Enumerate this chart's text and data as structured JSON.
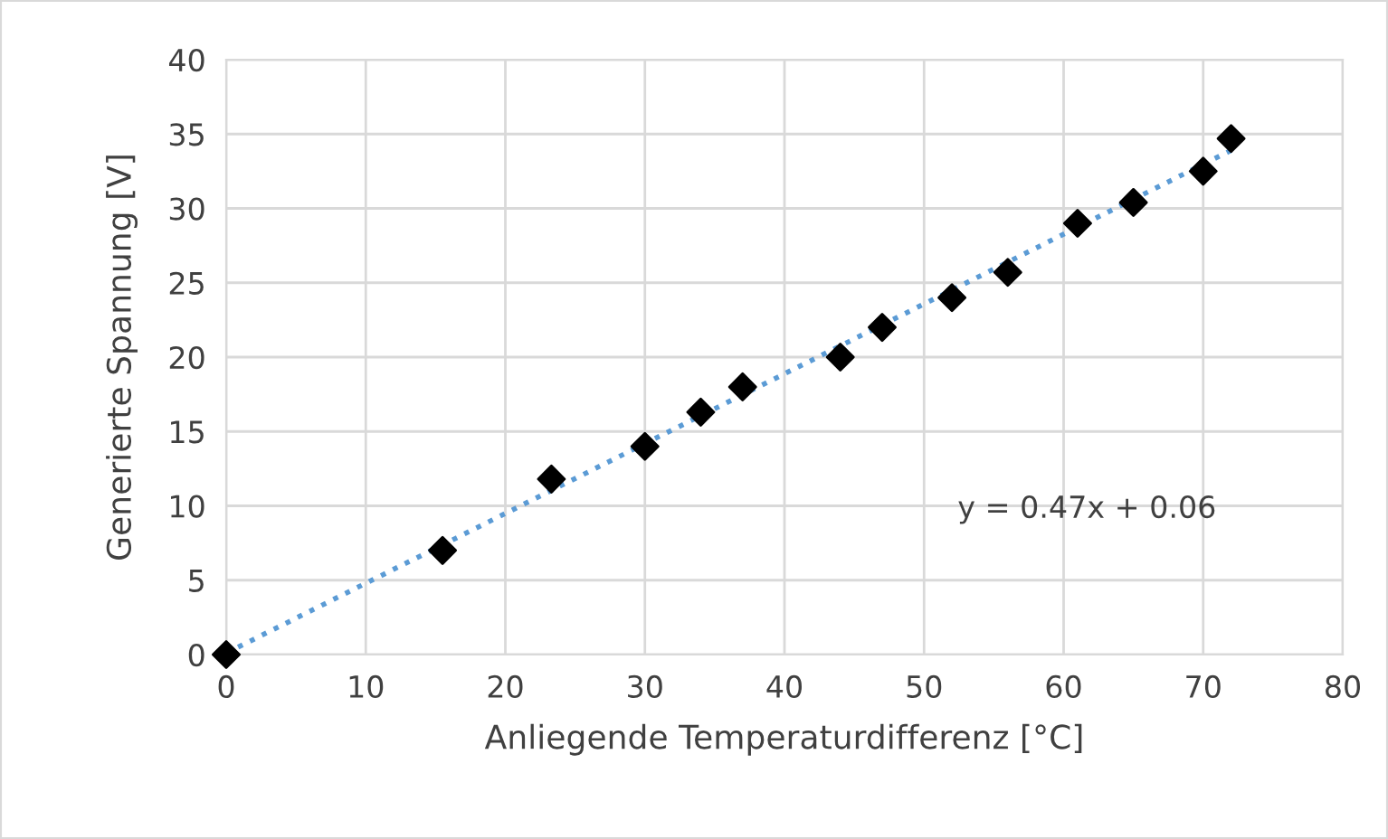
{
  "chart_data": {
    "type": "scatter",
    "xlabel": "Anliegende Temperaturdifferenz [°C]",
    "ylabel": "Generierte Spannung [V]",
    "xlim": [
      0,
      80
    ],
    "xticks": [
      0,
      10,
      20,
      30,
      40,
      50,
      60,
      70,
      80
    ],
    "ylim": [
      0,
      40
    ],
    "yticks": [
      0,
      5,
      10,
      15,
      20,
      25,
      30,
      35,
      40
    ],
    "grid": true,
    "marker": "diamond",
    "series": [
      {
        "color": "#000000",
        "x": [
          0,
          15.5,
          23.3,
          30,
          34,
          37,
          44,
          47,
          52,
          56,
          61,
          65,
          70,
          72
        ],
        "values": [
          0,
          7,
          11.8,
          14,
          16.3,
          18,
          20,
          22,
          24,
          25.7,
          29,
          30.4,
          32.5,
          34.7
        ]
      },
      {
        "type": "line",
        "color": "#5b9bd5",
        "line_style": "dotted",
        "marker": "none",
        "x": [
          0,
          72
        ],
        "values": [
          0.1,
          33.9
        ]
      }
    ],
    "annotations": [
      "y = 0.47x + 0.06"
    ]
  }
}
